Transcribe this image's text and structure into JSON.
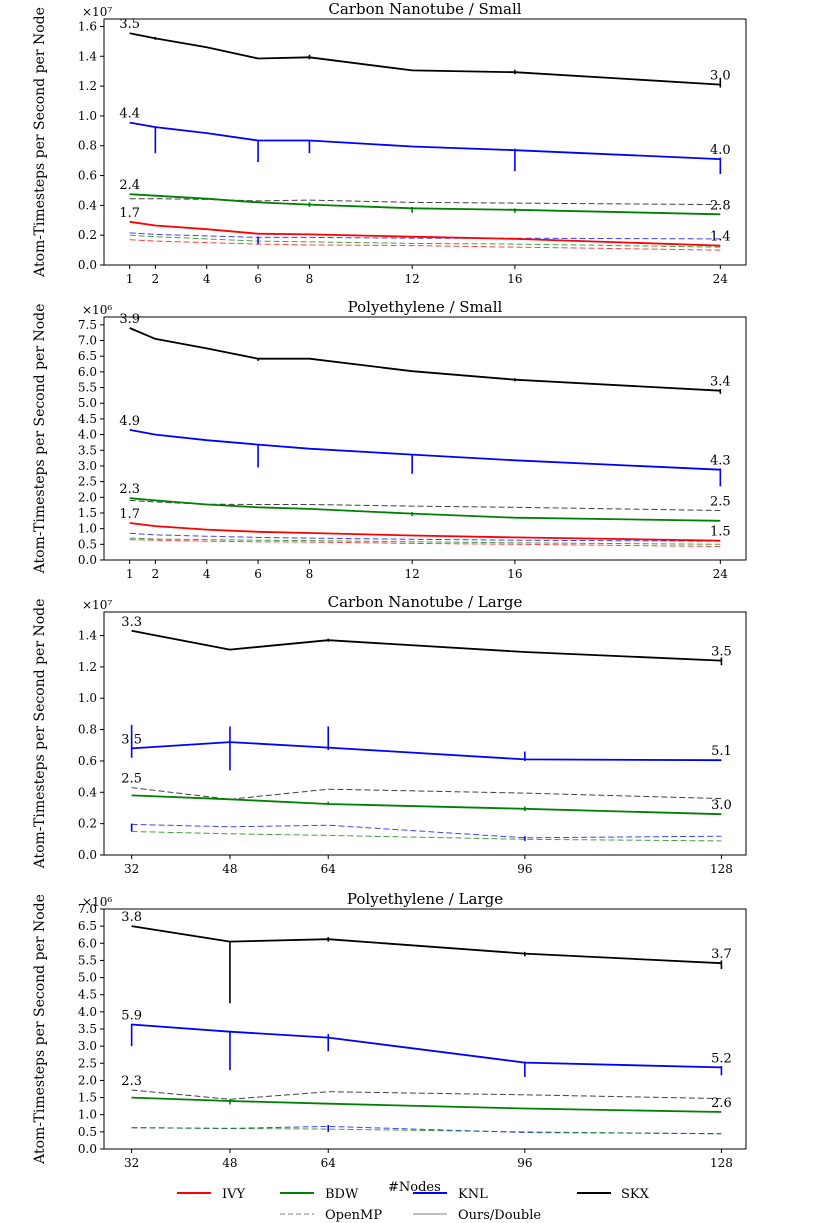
{
  "figure": {
    "ylabel": "Atom-Timesteps per Second per Node",
    "xlabel": "#Nodes"
  },
  "legend": {
    "items": [
      {
        "label": "IVY",
        "color": "#ff0000",
        "dash": "solid"
      },
      {
        "label": "BDW",
        "color": "#008000",
        "dash": "solid"
      },
      {
        "label": "KNL",
        "color": "#0000ff",
        "dash": "solid"
      },
      {
        "label": "SKX",
        "color": "#000000",
        "dash": "solid"
      },
      {
        "label": "OpenMP",
        "color": "#808080",
        "dash": "dashed"
      },
      {
        "label": "Ours/Double",
        "color": "#808080",
        "dash": "solid"
      }
    ]
  },
  "chart_data": [
    {
      "type": "line",
      "title": "Carbon Nanotube / Small",
      "sci_label": "×10⁷",
      "x_scale": "linear",
      "xlim": [
        0,
        25
      ],
      "ylim": [
        0,
        1.65
      ],
      "yticks": [
        0.0,
        0.2,
        0.4,
        0.6,
        0.8,
        1.0,
        1.2,
        1.4,
        1.6
      ],
      "ytick_labels": [
        "0.0",
        "0.2",
        "0.4",
        "0.6",
        "0.8",
        "1.0",
        "1.2",
        "1.4",
        "1.6"
      ],
      "x": [
        1,
        2,
        4,
        6,
        8,
        12,
        16,
        24
      ],
      "series": [
        {
          "name": "SKX",
          "color": "#000000",
          "dash": "solid",
          "values": [
            1.555,
            1.52,
            1.46,
            1.385,
            1.393,
            1.305,
            1.293,
            1.21
          ],
          "errors": [
            {
              "x": 2,
              "low": 1.51,
              "high": 1.53
            },
            {
              "x": 8,
              "low": 1.38,
              "high": 1.41
            },
            {
              "x": 16,
              "low": 1.28,
              "high": 1.31
            },
            {
              "x": 24,
              "low": 1.19,
              "high": 1.25
            }
          ]
        },
        {
          "name": "KNL",
          "color": "#0000ff",
          "dash": "solid",
          "values": [
            0.955,
            0.925,
            0.885,
            0.835,
            0.835,
            0.795,
            0.77,
            0.71
          ],
          "errors": [
            {
              "x": 2,
              "low": 0.75,
              "high": 0.93
            },
            {
              "x": 6,
              "low": 0.69,
              "high": 0.84
            },
            {
              "x": 8,
              "low": 0.75,
              "high": 0.84
            },
            {
              "x": 16,
              "low": 0.63,
              "high": 0.78
            },
            {
              "x": 24,
              "low": 0.61,
              "high": 0.72
            }
          ]
        },
        {
          "name": "BDW",
          "color": "#008000",
          "dash": "solid",
          "values": [
            0.475,
            0.465,
            0.445,
            0.42,
            0.405,
            0.38,
            0.37,
            0.34
          ],
          "errors": [
            {
              "x": 8,
              "low": 0.39,
              "high": 0.42
            },
            {
              "x": 12,
              "low": 0.35,
              "high": 0.39
            },
            {
              "x": 16,
              "low": 0.35,
              "high": 0.38
            }
          ]
        },
        {
          "name": "IVY",
          "color": "#ff0000",
          "dash": "solid",
          "values": [
            0.29,
            0.265,
            0.24,
            0.21,
            0.205,
            0.19,
            0.175,
            0.13
          ],
          "errors": []
        },
        {
          "name": "SKX OpenMP",
          "color": "#000000",
          "dash": "dashed",
          "values": [
            0.445,
            0.445,
            0.44,
            0.43,
            0.435,
            0.42,
            0.415,
            0.405
          ],
          "errors": []
        },
        {
          "name": "KNL OpenMP",
          "color": "#0000ff",
          "dash": "dashed",
          "values": [
            0.215,
            0.205,
            0.195,
            0.185,
            0.185,
            0.18,
            0.18,
            0.175
          ],
          "errors": [
            {
              "x": 6,
              "low": 0.14,
              "high": 0.19
            }
          ]
        },
        {
          "name": "BDW OpenMP",
          "color": "#008000",
          "dash": "dashed",
          "values": [
            0.2,
            0.19,
            0.175,
            0.16,
            0.155,
            0.145,
            0.14,
            0.12
          ],
          "errors": []
        },
        {
          "name": "IVY OpenMP",
          "color": "#ff0000",
          "dash": "dashed",
          "values": [
            0.17,
            0.16,
            0.15,
            0.14,
            0.135,
            0.13,
            0.12,
            0.1
          ],
          "errors": []
        }
      ],
      "annotations": [
        {
          "text": "3.5",
          "x": 1,
          "y": 1.555,
          "pos": "above"
        },
        {
          "text": "3.0",
          "x": 24,
          "y": 1.21,
          "pos": "above"
        },
        {
          "text": "4.4",
          "x": 1,
          "y": 0.955,
          "pos": "above"
        },
        {
          "text": "4.0",
          "x": 24,
          "y": 0.71,
          "pos": "above"
        },
        {
          "text": "2.4",
          "x": 1,
          "y": 0.475,
          "pos": "above"
        },
        {
          "text": "2.8",
          "x": 24,
          "y": 0.34,
          "pos": "above"
        },
        {
          "text": "1.7",
          "x": 1,
          "y": 0.29,
          "pos": "above"
        },
        {
          "text": "1.4",
          "x": 24,
          "y": 0.13,
          "pos": "above"
        }
      ]
    },
    {
      "type": "line",
      "title": "Polyethylene / Small",
      "sci_label": "×10⁶",
      "x_scale": "linear",
      "xlim": [
        0,
        25
      ],
      "ylim": [
        0,
        7.75
      ],
      "yticks": [
        0.0,
        0.5,
        1.0,
        1.5,
        2.0,
        2.5,
        3.0,
        3.5,
        4.0,
        4.5,
        5.0,
        5.5,
        6.0,
        6.5,
        7.0,
        7.5
      ],
      "ytick_labels": [
        "0.0",
        "0.5",
        "1.0",
        "1.5",
        "2.0",
        "2.5",
        "3.0",
        "3.5",
        "4.0",
        "4.5",
        "5.0",
        "5.5",
        "6.0",
        "6.5",
        "7.0",
        "7.5"
      ],
      "x": [
        1,
        2,
        4,
        6,
        8,
        12,
        16,
        24
      ],
      "series": [
        {
          "name": "SKX",
          "color": "#000000",
          "dash": "solid",
          "values": [
            7.4,
            7.05,
            6.75,
            6.42,
            6.42,
            6.02,
            5.75,
            5.4
          ],
          "errors": [
            {
              "x": 6,
              "low": 6.35,
              "high": 6.45
            },
            {
              "x": 16,
              "low": 5.7,
              "high": 5.8
            },
            {
              "x": 24,
              "low": 5.3,
              "high": 5.45
            }
          ]
        },
        {
          "name": "KNL",
          "color": "#0000ff",
          "dash": "solid",
          "values": [
            4.15,
            4.0,
            3.82,
            3.68,
            3.55,
            3.36,
            3.18,
            2.88
          ],
          "errors": [
            {
              "x": 6,
              "low": 2.95,
              "high": 3.7
            },
            {
              "x": 12,
              "low": 2.75,
              "high": 3.38
            },
            {
              "x": 24,
              "low": 2.35,
              "high": 2.92
            }
          ]
        },
        {
          "name": "BDW",
          "color": "#008000",
          "dash": "solid",
          "values": [
            1.97,
            1.9,
            1.77,
            1.68,
            1.63,
            1.48,
            1.35,
            1.25
          ],
          "errors": [
            {
              "x": 12,
              "low": 1.4,
              "high": 1.53
            }
          ]
        },
        {
          "name": "IVY",
          "color": "#ff0000",
          "dash": "solid",
          "values": [
            1.18,
            1.08,
            0.97,
            0.9,
            0.86,
            0.78,
            0.72,
            0.62
          ],
          "errors": []
        },
        {
          "name": "SKX OpenMP",
          "color": "#000000",
          "dash": "dashed",
          "values": [
            1.9,
            1.85,
            1.78,
            1.77,
            1.77,
            1.72,
            1.68,
            1.58
          ],
          "errors": []
        },
        {
          "name": "KNL OpenMP",
          "color": "#0000ff",
          "dash": "dashed",
          "values": [
            0.85,
            0.8,
            0.76,
            0.72,
            0.7,
            0.66,
            0.63,
            0.6
          ],
          "errors": []
        },
        {
          "name": "BDW OpenMP",
          "color": "#008000",
          "dash": "dashed",
          "values": [
            0.7,
            0.67,
            0.65,
            0.63,
            0.62,
            0.58,
            0.55,
            0.5
          ],
          "errors": []
        },
        {
          "name": "IVY OpenMP",
          "color": "#ff0000",
          "dash": "dashed",
          "values": [
            0.65,
            0.63,
            0.6,
            0.58,
            0.57,
            0.53,
            0.5,
            0.43
          ],
          "errors": []
        }
      ],
      "annotations": [
        {
          "text": "3.9",
          "x": 1,
          "y": 7.4,
          "pos": "above"
        },
        {
          "text": "3.4",
          "x": 24,
          "y": 5.4,
          "pos": "above"
        },
        {
          "text": "4.9",
          "x": 1,
          "y": 4.15,
          "pos": "above"
        },
        {
          "text": "4.3",
          "x": 24,
          "y": 2.88,
          "pos": "above"
        },
        {
          "text": "2.3",
          "x": 1,
          "y": 1.97,
          "pos": "above"
        },
        {
          "text": "2.5",
          "x": 24,
          "y": 1.58,
          "pos": "above"
        },
        {
          "text": "1.7",
          "x": 1,
          "y": 1.18,
          "pos": "above"
        },
        {
          "text": "1.5",
          "x": 24,
          "y": 0.62,
          "pos": "above"
        }
      ]
    },
    {
      "type": "line",
      "title": "Carbon Nanotube / Large",
      "sci_label": "×10⁷",
      "x_scale": "linear",
      "xlim": [
        27.5,
        132
      ],
      "ylim": [
        0,
        1.55
      ],
      "yticks": [
        0.0,
        0.2,
        0.4,
        0.6,
        0.8,
        1.0,
        1.2,
        1.4
      ],
      "ytick_labels": [
        "0.0",
        "0.2",
        "0.4",
        "0.6",
        "0.8",
        "1.0",
        "1.2",
        "1.4"
      ],
      "x": [
        32,
        48,
        64,
        96,
        128
      ],
      "series": [
        {
          "name": "SKX",
          "color": "#000000",
          "dash": "solid",
          "values": [
            1.43,
            1.31,
            1.37,
            1.295,
            1.24
          ],
          "errors": [
            {
              "x": 64,
              "low": 1.36,
              "high": 1.38
            },
            {
              "x": 128,
              "low": 1.21,
              "high": 1.26
            }
          ]
        },
        {
          "name": "KNL",
          "color": "#0000ff",
          "dash": "solid",
          "values": [
            0.68,
            0.72,
            0.685,
            0.61,
            0.605
          ],
          "errors": [
            {
              "x": 32,
              "low": 0.62,
              "high": 0.83
            },
            {
              "x": 48,
              "low": 0.54,
              "high": 0.82
            },
            {
              "x": 64,
              "low": 0.67,
              "high": 0.82
            },
            {
              "x": 96,
              "low": 0.6,
              "high": 0.66
            }
          ]
        },
        {
          "name": "BDW",
          "color": "#008000",
          "dash": "solid",
          "values": [
            0.38,
            0.355,
            0.325,
            0.295,
            0.26
          ],
          "errors": [
            {
              "x": 64,
              "low": 0.32,
              "high": 0.34
            },
            {
              "x": 96,
              "low": 0.28,
              "high": 0.31
            }
          ]
        },
        {
          "name": "SKX OpenMP",
          "color": "#000000",
          "dash": "dashed",
          "values": [
            0.43,
            0.355,
            0.42,
            0.395,
            0.36
          ],
          "errors": []
        },
        {
          "name": "KNL OpenMP",
          "color": "#0000ff",
          "dash": "dashed",
          "values": [
            0.195,
            0.18,
            0.19,
            0.11,
            0.12
          ],
          "errors": [
            {
              "x": 32,
              "low": 0.15,
              "high": 0.2
            },
            {
              "x": 96,
              "low": 0.09,
              "high": 0.12
            }
          ]
        },
        {
          "name": "BDW OpenMP",
          "color": "#008000",
          "dash": "dashed",
          "values": [
            0.15,
            0.135,
            0.125,
            0.1,
            0.09
          ],
          "errors": []
        }
      ],
      "annotations": [
        {
          "text": "3.3",
          "x": 32,
          "y": 1.43,
          "pos": "above"
        },
        {
          "text": "3.5",
          "x": 128,
          "y": 1.24,
          "pos": "above"
        },
        {
          "text": "3.5",
          "x": 32,
          "y": 0.68,
          "pos": "above"
        },
        {
          "text": "5.1",
          "x": 128,
          "y": 0.605,
          "pos": "above"
        },
        {
          "text": "2.5",
          "x": 32,
          "y": 0.43,
          "pos": "above"
        },
        {
          "text": "3.0",
          "x": 128,
          "y": 0.26,
          "pos": "above"
        }
      ]
    },
    {
      "type": "line",
      "title": "Polyethylene / Large",
      "sci_label": "×10⁶",
      "x_scale": "linear",
      "xlim": [
        27.5,
        132
      ],
      "ylim": [
        0,
        7.0
      ],
      "yticks": [
        0.0,
        0.5,
        1.0,
        1.5,
        2.0,
        2.5,
        3.0,
        3.5,
        4.0,
        4.5,
        5.0,
        5.5,
        6.0,
        6.5,
        7.0
      ],
      "ytick_labels": [
        "0.0",
        "0.5",
        "1.0",
        "1.5",
        "2.0",
        "2.5",
        "3.0",
        "3.5",
        "4.0",
        "4.5",
        "5.0",
        "5.5",
        "6.0",
        "6.5",
        "7.0"
      ],
      "x": [
        32,
        48,
        64,
        96,
        128
      ],
      "series": [
        {
          "name": "SKX",
          "color": "#000000",
          "dash": "solid",
          "values": [
            6.5,
            6.05,
            6.12,
            5.7,
            5.42
          ],
          "errors": [
            {
              "x": 48,
              "low": 4.25,
              "high": 6.07
            },
            {
              "x": 64,
              "low": 6.05,
              "high": 6.18
            },
            {
              "x": 96,
              "low": 5.62,
              "high": 5.75
            },
            {
              "x": 128,
              "low": 5.25,
              "high": 5.5
            }
          ]
        },
        {
          "name": "KNL",
          "color": "#0000ff",
          "dash": "solid",
          "values": [
            3.63,
            3.42,
            3.25,
            2.52,
            2.38
          ],
          "errors": [
            {
              "x": 32,
              "low": 3.0,
              "high": 3.65
            },
            {
              "x": 48,
              "low": 2.3,
              "high": 3.45
            },
            {
              "x": 64,
              "low": 2.85,
              "high": 3.35
            },
            {
              "x": 96,
              "low": 2.1,
              "high": 2.55
            },
            {
              "x": 128,
              "low": 2.15,
              "high": 2.42
            }
          ]
        },
        {
          "name": "BDW",
          "color": "#008000",
          "dash": "solid",
          "values": [
            1.5,
            1.4,
            1.32,
            1.18,
            1.08
          ],
          "errors": [
            {
              "x": 48,
              "low": 1.3,
              "high": 1.45
            }
          ]
        },
        {
          "name": "SKX OpenMP",
          "color": "#000000",
          "dash": "dashed",
          "values": [
            1.72,
            1.45,
            1.67,
            1.58,
            1.47
          ],
          "errors": []
        },
        {
          "name": "KNL OpenMP",
          "color": "#0000ff",
          "dash": "dashed",
          "values": [
            0.62,
            0.6,
            0.66,
            0.48,
            0.45
          ],
          "errors": [
            {
              "x": 64,
              "low": 0.5,
              "high": 0.7
            }
          ]
        },
        {
          "name": "BDW OpenMP",
          "color": "#008000",
          "dash": "dashed",
          "values": [
            0.62,
            0.6,
            0.58,
            0.5,
            0.44
          ],
          "errors": []
        }
      ],
      "annotations": [
        {
          "text": "3.8",
          "x": 32,
          "y": 6.5,
          "pos": "above"
        },
        {
          "text": "3.7",
          "x": 128,
          "y": 5.42,
          "pos": "above"
        },
        {
          "text": "5.9",
          "x": 32,
          "y": 3.63,
          "pos": "above"
        },
        {
          "text": "5.2",
          "x": 128,
          "y": 2.38,
          "pos": "above"
        },
        {
          "text": "2.3",
          "x": 32,
          "y": 1.72,
          "pos": "above"
        },
        {
          "text": "2.6",
          "x": 128,
          "y": 1.08,
          "pos": "above"
        }
      ]
    }
  ]
}
